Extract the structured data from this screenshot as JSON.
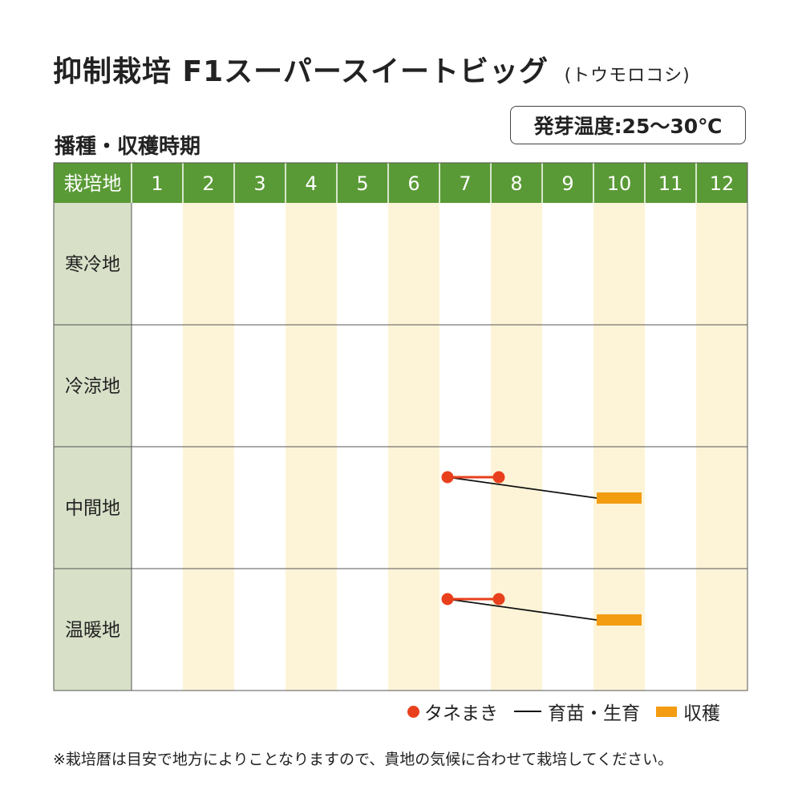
{
  "title": "抑制栽培 F1スーパースイートビッグ",
  "title_sub": "(トウモロコシ)",
  "subtitle": "播種・収穫時期",
  "germination_temp": "発芽温度:25〜30℃",
  "calendar": {
    "corner_label": "栽培地",
    "months": [
      "1",
      "2",
      "3",
      "4",
      "5",
      "6",
      "7",
      "8",
      "9",
      "10",
      "11",
      "12"
    ],
    "regions": [
      {
        "name": "寒冷地",
        "sowing": null,
        "harvest": null
      },
      {
        "name": "冷涼地",
        "sowing": null,
        "harvest": null
      },
      {
        "name": "中間地",
        "sowing": [
          7,
          8
        ],
        "harvest": [
          10,
          10
        ]
      },
      {
        "name": "温暖地",
        "sowing": [
          7,
          8
        ],
        "harvest": [
          10,
          10
        ]
      }
    ]
  },
  "legend": {
    "sowing": "タネまき",
    "growing": "育苗・生育",
    "harvest": "収穫"
  },
  "colors": {
    "header_green": "#5a9a36",
    "region_bg": "#d8e0c8",
    "stripe": "#fdf4d8",
    "sowing": "#e8401c",
    "growing": "#111111",
    "harvest": "#f39c12",
    "grid": "#555555"
  },
  "note": "※栽培暦は目安で地方によりことなりますので、貴地の気候に合わせて栽培してください。"
}
